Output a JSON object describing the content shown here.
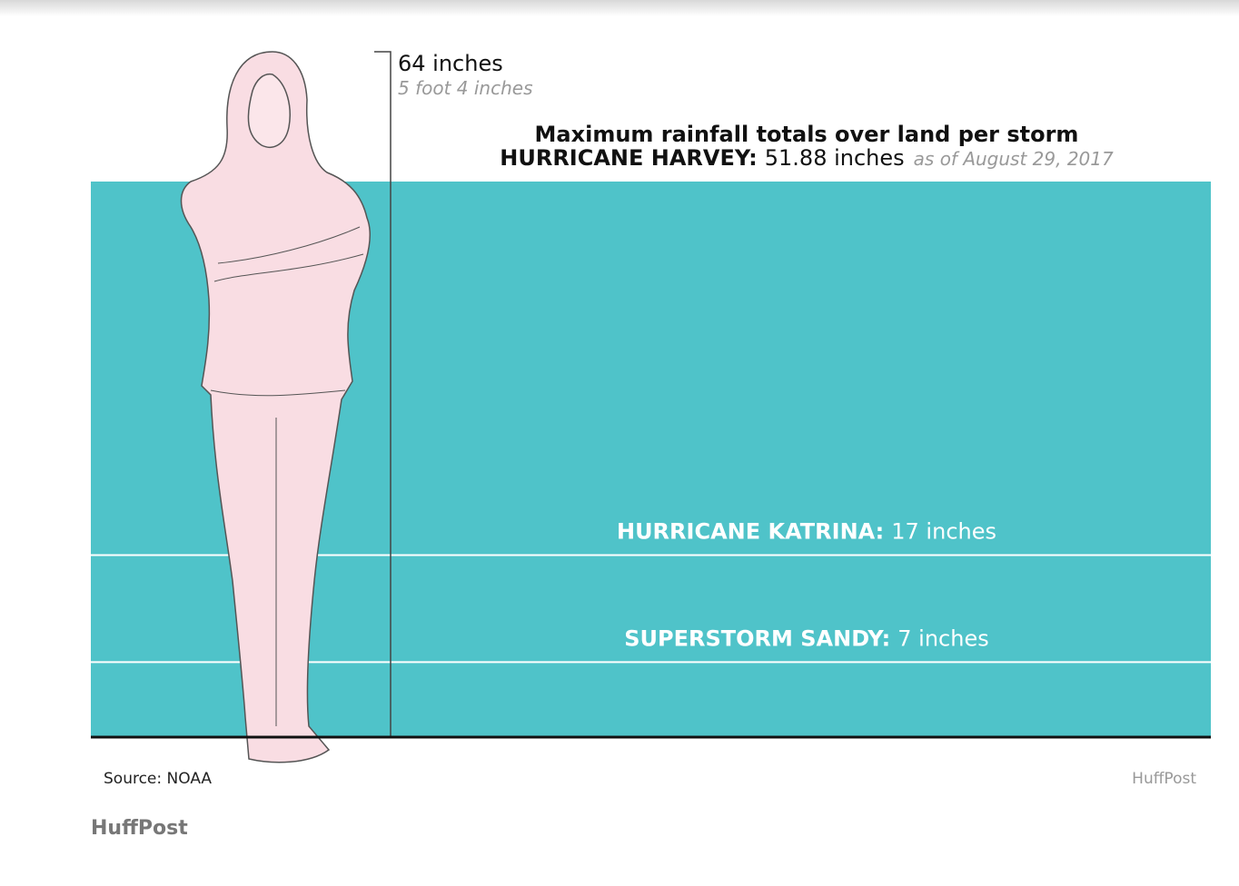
{
  "chart_data": {
    "type": "level",
    "title": "Maximum rainfall totals over land per storm",
    "categories": [
      "HURRICANE HARVEY:",
      "HURRICANE KATRINA:",
      "SUPERSTORM SANDY:"
    ],
    "values": [
      51.88,
      17,
      7
    ],
    "value_labels": [
      "51.88 inches",
      "17 inches",
      "7 inches"
    ],
    "note": "as of August 29, 2017",
    "reference": {
      "value": 64,
      "label": "64 inches",
      "sublabel": "5 foot 4 inches"
    },
    "color": "#4fc3c9",
    "ylim": [
      0,
      64
    ],
    "source": "Source: NOAA",
    "credit": "HuffPost"
  },
  "footer": "HuffPost"
}
